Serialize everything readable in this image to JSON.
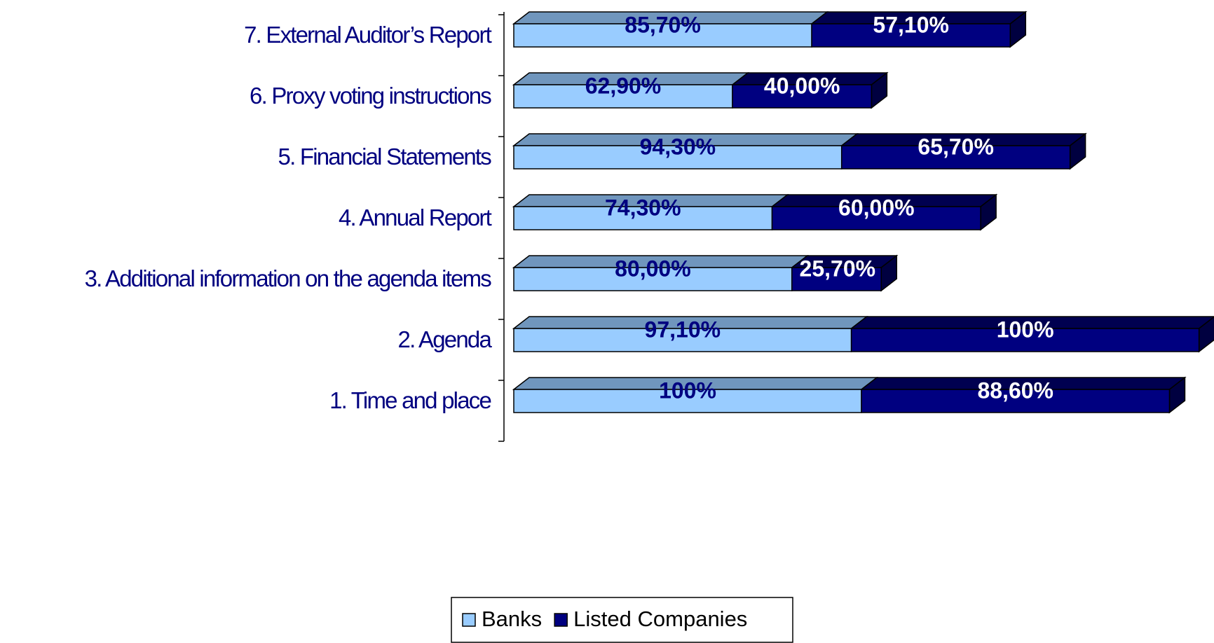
{
  "chart_data": {
    "type": "bar3d_stacked_horizontal",
    "categories": [
      "1. Time and place",
      "2. Agenda",
      "3. Additional information on the agenda items",
      "4. Annual Report",
      "5. Financial Statements",
      "6. Proxy voting instructions",
      "7. External Auditor’s Report"
    ],
    "series": [
      {
        "name": "Banks",
        "color": "#99ccff",
        "top_color": "#7096bd",
        "side_color": "#6688aa",
        "label_color": "#000080",
        "values": [
          100,
          97.1,
          80,
          74.3,
          94.3,
          62.9,
          85.7
        ],
        "value_labels": [
          "100%",
          "97,10%",
          "80,00%",
          "74,30%",
          "94,30%",
          "62,90%",
          "85,70%"
        ]
      },
      {
        "name": "Listed Companies",
        "color": "#000080",
        "top_color": "#000050",
        "side_color": "#000040",
        "label_color": "#ffffff",
        "values": [
          88.6,
          100,
          25.7,
          60,
          65.7,
          40,
          57.1
        ],
        "value_labels": [
          "88,60%",
          "100%",
          "25,70%",
          "60,00%",
          "65,70%",
          "40,00%",
          "57,10%"
        ]
      }
    ],
    "xlim": [
      0,
      200
    ]
  }
}
